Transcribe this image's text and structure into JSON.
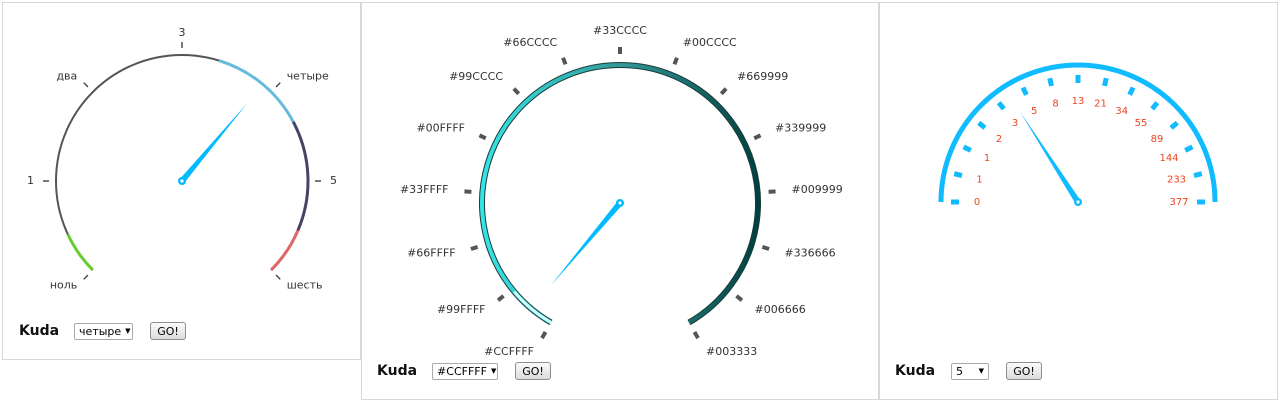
{
  "gauge1": {
    "labels": [
      "ноль",
      "1",
      "два",
      "3",
      "четыре",
      "5",
      "шесть"
    ],
    "value_index": 4,
    "control": {
      "label": "Kuda",
      "selected": "четыре",
      "button": "GO!"
    },
    "colors": {
      "arc": "#555555",
      "green": "#66cc33",
      "blue": "#66bbdd",
      "dark": "#444466",
      "red": "#dd6666",
      "needle": "#00bbff",
      "label": "#333333"
    }
  },
  "gauge2": {
    "labels": [
      "#CCFFFF",
      "#99FFFF",
      "#66FFFF",
      "#33FFFF",
      "#00FFFF",
      "#99CCCC",
      "#66CCCC",
      "#33CCCC",
      "#00CCCC",
      "#669999",
      "#339999",
      "#009999",
      "#336666",
      "#006666",
      "#003333"
    ],
    "value": "#CCFFFF",
    "control": {
      "label": "Kuda",
      "selected": "#CCFFFF",
      "button": "GO!"
    },
    "colors": {
      "needle": "#00bbff",
      "tick": "#555555",
      "label": "#333333"
    }
  },
  "gauge3": {
    "labels": [
      "0",
      "1",
      "1",
      "2",
      "3",
      "5",
      "8",
      "13",
      "21",
      "34",
      "55",
      "89",
      "144",
      "233",
      "377"
    ],
    "value": "5",
    "control": {
      "label": "Kuda",
      "selected": "5",
      "button": "GO!"
    },
    "colors": {
      "arc": "#11bbff",
      "label": "#ee4422",
      "needle": "#11bbff"
    }
  }
}
